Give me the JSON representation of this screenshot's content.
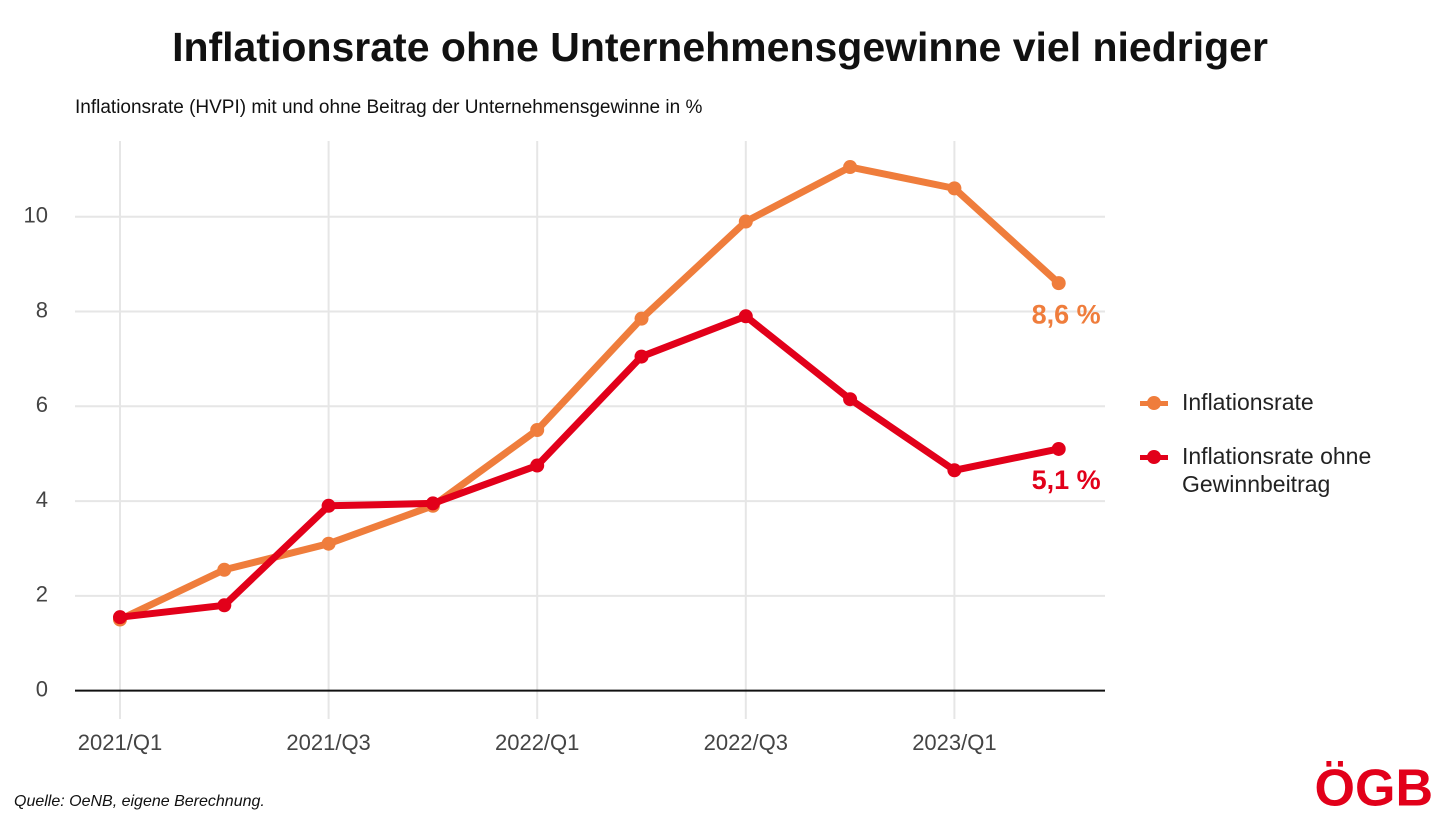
{
  "chart_data": {
    "type": "line",
    "title": "Inflationsrate ohne Unternehmensgewinne viel niedriger",
    "subtitle": "Inflationsrate (HVPI) mit und ohne Beitrag der Unternehmensgewinne in %",
    "source": "Quelle: OeNB, eigene Berechnung.",
    "logo": "ÖGB",
    "categories": [
      "2021/Q1",
      null,
      "2021/Q3",
      null,
      "2022/Q1",
      null,
      "2022/Q3",
      null,
      "2023/Q1",
      null
    ],
    "series": [
      {
        "name": "Inflationsrate",
        "color": "#ef7d3c",
        "values": [
          1.5,
          2.55,
          3.1,
          3.9,
          5.5,
          7.85,
          9.9,
          11.05,
          10.6,
          8.6
        ],
        "value_labels": [
          null,
          null,
          null,
          null,
          null,
          null,
          null,
          null,
          null,
          "8,6 %"
        ]
      },
      {
        "name": "Inflationsrate ohne Gewinnbeitrag",
        "color": "#e2001a",
        "values": [
          1.55,
          1.8,
          3.9,
          3.95,
          4.75,
          7.05,
          7.9,
          6.15,
          4.65,
          5.1
        ],
        "value_labels": [
          null,
          null,
          null,
          null,
          null,
          null,
          null,
          null,
          null,
          "5,1 %"
        ]
      }
    ],
    "ylim": [
      -0.6,
      11.6
    ],
    "yticks": [
      0,
      2,
      4,
      6,
      8,
      10
    ],
    "grid": true,
    "legend": "right"
  }
}
